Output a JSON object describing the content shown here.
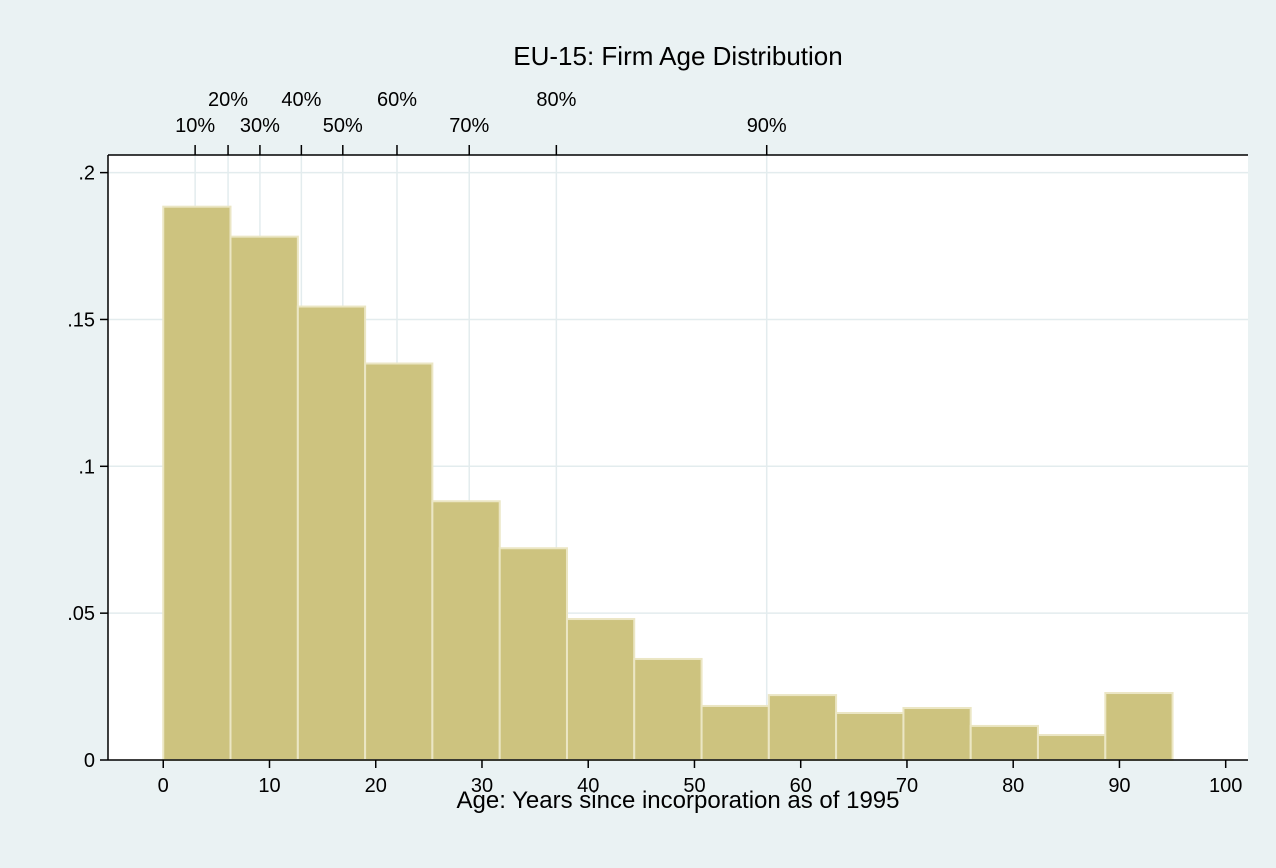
{
  "chart_data": {
    "type": "histogram",
    "title": "EU-15: Firm Age Distribution",
    "x_label": "Age: Years since incorporation as of 1995",
    "bins": [
      0,
      6.33,
      12.67,
      19,
      25.33,
      31.67,
      38,
      44.33,
      50.67,
      57,
      63.33,
      69.67,
      76,
      82.33,
      88.67,
      95
    ],
    "values": [
      0.1884,
      0.1782,
      0.1544,
      0.135,
      0.0881,
      0.0721,
      0.048,
      0.0344,
      0.0184,
      0.0221,
      0.016,
      0.0177,
      0.0116,
      0.0085,
      0.0228
    ],
    "color": "#cdc37f",
    "edge_color": "#ebe6c4",
    "xlim": [
      -5.2,
      102.1
    ],
    "ylim": [
      0,
      0.206
    ],
    "xticks": [
      0,
      10,
      20,
      30,
      40,
      50,
      60,
      70,
      80,
      90,
      100
    ],
    "yticks": [
      0,
      {
        "value": 0.05,
        "label": ".05"
      },
      {
        "value": 0.1,
        "label": ".1"
      },
      {
        "value": 0.15,
        "label": ".15"
      },
      {
        "value": 0.2,
        "label": ".2"
      }
    ],
    "x2ticks": [
      {
        "value": 3.0,
        "label": "10%"
      },
      {
        "value": 6.1,
        "label": "20%"
      },
      {
        "value": 9.1,
        "label": "30%"
      },
      {
        "value": 13.0,
        "label": "40%"
      },
      {
        "value": 16.9,
        "label": "50%"
      },
      {
        "value": 22.0,
        "label": "60%"
      },
      {
        "value": 28.8,
        "label": "70%"
      },
      {
        "value": 37.0,
        "label": "80%"
      },
      {
        "value": 56.8,
        "label": "90%"
      }
    ],
    "grid": true
  }
}
